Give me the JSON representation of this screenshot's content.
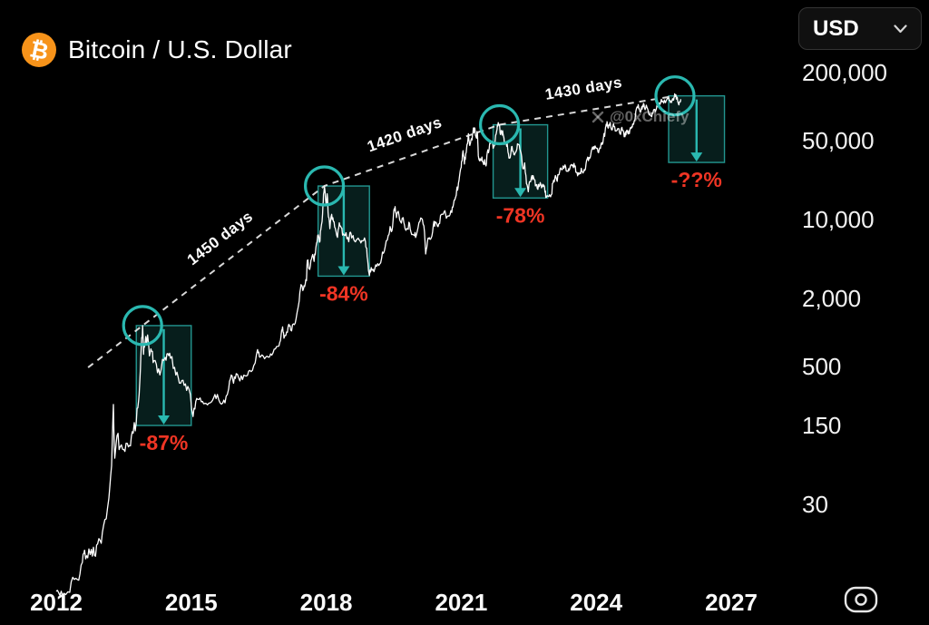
{
  "header": {
    "title": "Bitcoin / U.S. Dollar",
    "logo_glyph": "₿"
  },
  "currency_selector": {
    "label": "USD"
  },
  "watermark": {
    "text": "@0xChiefy"
  },
  "colors": {
    "background": "#000000",
    "price_line": "#ffffff",
    "accent_teal": "#2ab8b0",
    "alert_red": "#f03524",
    "bitcoin_orange": "#f7931a",
    "axis_text": "#f2f2f2"
  },
  "chart_data": {
    "type": "line",
    "title": "Bitcoin / U.S. Dollar",
    "x_axis": {
      "ticks": [
        2012,
        2015,
        2018,
        2021,
        2024,
        2027
      ],
      "range": [
        2011.75,
        2027.6
      ]
    },
    "y_axis": {
      "scale": "log",
      "unit": "USD",
      "ticks": [
        200000,
        50000,
        10000,
        2000,
        500,
        150,
        30
      ],
      "tick_labels": [
        "200,000",
        "50,000",
        "10,000",
        "2,000",
        "500",
        "150",
        "30"
      ]
    },
    "points": [
      [
        2012.0,
        5.1
      ],
      [
        2012.08,
        4.7
      ],
      [
        2012.17,
        4.9
      ],
      [
        2012.3,
        5.0
      ],
      [
        2012.4,
        6.5
      ],
      [
        2012.5,
        6.4
      ],
      [
        2012.58,
        9.2
      ],
      [
        2012.63,
        11.8
      ],
      [
        2012.7,
        10.1
      ],
      [
        2012.78,
        12.0
      ],
      [
        2012.85,
        10.6
      ],
      [
        2012.92,
        13.4
      ],
      [
        2013.0,
        13.6
      ],
      [
        2013.08,
        22
      ],
      [
        2013.17,
        34
      ],
      [
        2013.23,
        66
      ],
      [
        2013.27,
        230
      ],
      [
        2013.3,
        77
      ],
      [
        2013.35,
        122
      ],
      [
        2013.42,
        97
      ],
      [
        2013.5,
        92
      ],
      [
        2013.58,
        104
      ],
      [
        2013.65,
        99
      ],
      [
        2013.71,
        128
      ],
      [
        2013.78,
        165
      ],
      [
        2013.83,
        250
      ],
      [
        2013.87,
        480
      ],
      [
        2013.9,
        900
      ],
      [
        2013.92,
        1150
      ],
      [
        2013.94,
        640
      ],
      [
        2013.97,
        780
      ],
      [
        2014.0,
        840
      ],
      [
        2014.03,
        950
      ],
      [
        2014.07,
        620
      ],
      [
        2014.12,
        680
      ],
      [
        2014.17,
        560
      ],
      [
        2014.25,
        440
      ],
      [
        2014.33,
        470
      ],
      [
        2014.42,
        600
      ],
      [
        2014.48,
        650
      ],
      [
        2014.54,
        590
      ],
      [
        2014.63,
        490
      ],
      [
        2014.71,
        400
      ],
      [
        2014.79,
        375
      ],
      [
        2014.87,
        350
      ],
      [
        2014.95,
        315
      ],
      [
        2015.04,
        180
      ],
      [
        2015.1,
        245
      ],
      [
        2015.17,
        255
      ],
      [
        2015.25,
        245
      ],
      [
        2015.33,
        235
      ],
      [
        2015.42,
        238
      ],
      [
        2015.5,
        265
      ],
      [
        2015.58,
        282
      ],
      [
        2015.67,
        232
      ],
      [
        2015.75,
        238
      ],
      [
        2015.83,
        315
      ],
      [
        2015.89,
        420
      ],
      [
        2015.94,
        355
      ],
      [
        2016.0,
        432
      ],
      [
        2016.08,
        372
      ],
      [
        2016.17,
        418
      ],
      [
        2016.25,
        417
      ],
      [
        2016.33,
        450
      ],
      [
        2016.42,
        535
      ],
      [
        2016.46,
        665
      ],
      [
        2016.5,
        670
      ],
      [
        2016.54,
        610
      ],
      [
        2016.63,
        585
      ],
      [
        2016.71,
        605
      ],
      [
        2016.79,
        630
      ],
      [
        2016.87,
        715
      ],
      [
        2016.95,
        760
      ],
      [
        2017.0,
        970
      ],
      [
        2017.03,
        1120
      ],
      [
        2017.06,
        890
      ],
      [
        2017.12,
        1010
      ],
      [
        2017.17,
        1180
      ],
      [
        2017.21,
        1050
      ],
      [
        2017.27,
        1190
      ],
      [
        2017.33,
        1330
      ],
      [
        2017.4,
        1900
      ],
      [
        2017.44,
        2650
      ],
      [
        2017.48,
        2350
      ],
      [
        2017.52,
        2550
      ],
      [
        2017.56,
        2870
      ],
      [
        2017.58,
        4350
      ],
      [
        2017.62,
        3650
      ],
      [
        2017.66,
        4350
      ],
      [
        2017.7,
        4900
      ],
      [
        2017.73,
        4250
      ],
      [
        2017.77,
        5650
      ],
      [
        2017.81,
        7200
      ],
      [
        2017.85,
        6300
      ],
      [
        2017.88,
        8100
      ],
      [
        2017.92,
        11300
      ],
      [
        2017.94,
        16800
      ],
      [
        2017.96,
        19800
      ],
      [
        2018.0,
        13400
      ],
      [
        2018.02,
        16900
      ],
      [
        2018.05,
        10500
      ],
      [
        2018.08,
        8300
      ],
      [
        2018.12,
        11100
      ],
      [
        2018.16,
        9600
      ],
      [
        2018.2,
        8400
      ],
      [
        2018.25,
        6950
      ],
      [
        2018.29,
        9350
      ],
      [
        2018.33,
        8500
      ],
      [
        2018.38,
        7450
      ],
      [
        2018.44,
        7650
      ],
      [
        2018.5,
        6350
      ],
      [
        2018.54,
        7700
      ],
      [
        2018.58,
        7050
      ],
      [
        2018.63,
        6450
      ],
      [
        2018.69,
        6700
      ],
      [
        2018.75,
        6500
      ],
      [
        2018.81,
        6450
      ],
      [
        2018.87,
        6380
      ],
      [
        2018.9,
        5550
      ],
      [
        2018.93,
        4000
      ],
      [
        2018.96,
        3200
      ],
      [
        2019.0,
        3750
      ],
      [
        2019.06,
        3450
      ],
      [
        2019.12,
        3850
      ],
      [
        2019.19,
        4050
      ],
      [
        2019.25,
        5150
      ],
      [
        2019.31,
        5750
      ],
      [
        2019.38,
        7250
      ],
      [
        2019.42,
        8650
      ],
      [
        2019.46,
        7950
      ],
      [
        2019.5,
        11900
      ],
      [
        2019.53,
        13000
      ],
      [
        2019.56,
        10400
      ],
      [
        2019.6,
        11800
      ],
      [
        2019.65,
        9600
      ],
      [
        2019.71,
        10400
      ],
      [
        2019.75,
        8350
      ],
      [
        2019.81,
        8250
      ],
      [
        2019.85,
        9250
      ],
      [
        2019.9,
        7350
      ],
      [
        2019.96,
        7200
      ],
      [
        2020.0,
        7200
      ],
      [
        2020.06,
        9400
      ],
      [
        2020.12,
        10200
      ],
      [
        2020.17,
        8800
      ],
      [
        2020.21,
        4950
      ],
      [
        2020.25,
        6450
      ],
      [
        2020.29,
        6900
      ],
      [
        2020.33,
        6850
      ],
      [
        2020.38,
        8850
      ],
      [
        2020.42,
        9550
      ],
      [
        2020.46,
        9050
      ],
      [
        2020.5,
        9150
      ],
      [
        2020.56,
        11100
      ],
      [
        2020.62,
        11750
      ],
      [
        2020.67,
        10250
      ],
      [
        2020.73,
        10700
      ],
      [
        2020.79,
        11550
      ],
      [
        2020.83,
        13850
      ],
      [
        2020.87,
        15600
      ],
      [
        2020.9,
        18400
      ],
      [
        2020.93,
        19200
      ],
      [
        2020.96,
        23850
      ],
      [
        2021.0,
        29000
      ],
      [
        2021.02,
        33100
      ],
      [
        2021.04,
        40600
      ],
      [
        2021.07,
        31000
      ],
      [
        2021.1,
        38300
      ],
      [
        2021.13,
        46400
      ],
      [
        2021.16,
        57500
      ],
      [
        2021.19,
        45200
      ],
      [
        2021.23,
        52000
      ],
      [
        2021.26,
        58800
      ],
      [
        2021.29,
        64850
      ],
      [
        2021.33,
        53600
      ],
      [
        2021.36,
        57800
      ],
      [
        2021.38,
        36700
      ],
      [
        2021.42,
        34600
      ],
      [
        2021.46,
        35700
      ],
      [
        2021.49,
        31600
      ],
      [
        2021.52,
        33900
      ],
      [
        2021.55,
        29800
      ],
      [
        2021.58,
        39500
      ],
      [
        2021.62,
        42200
      ],
      [
        2021.65,
        47100
      ],
      [
        2021.69,
        48800
      ],
      [
        2021.72,
        43800
      ],
      [
        2021.75,
        48150
      ],
      [
        2021.79,
        61350
      ],
      [
        2021.81,
        66950
      ],
      [
        2021.85,
        69000
      ],
      [
        2021.87,
        56500
      ],
      [
        2021.9,
        58900
      ],
      [
        2021.93,
        57300
      ],
      [
        2021.96,
        46200
      ],
      [
        2022.0,
        47750
      ],
      [
        2022.03,
        43100
      ],
      [
        2022.06,
        35050
      ],
      [
        2022.1,
        38300
      ],
      [
        2022.13,
        44400
      ],
      [
        2022.17,
        37700
      ],
      [
        2022.21,
        39400
      ],
      [
        2022.25,
        46850
      ],
      [
        2022.29,
        45500
      ],
      [
        2022.33,
        38600
      ],
      [
        2022.37,
        28300
      ],
      [
        2022.41,
        31700
      ],
      [
        2022.45,
        20800
      ],
      [
        2022.49,
        17600
      ],
      [
        2022.53,
        21600
      ],
      [
        2022.57,
        24450
      ],
      [
        2022.61,
        23300
      ],
      [
        2022.65,
        19800
      ],
      [
        2022.69,
        18800
      ],
      [
        2022.73,
        19550
      ],
      [
        2022.77,
        20350
      ],
      [
        2022.81,
        20500
      ],
      [
        2022.85,
        19400
      ],
      [
        2022.88,
        15700
      ],
      [
        2022.92,
        16200
      ],
      [
        2022.96,
        16550
      ],
      [
        2023.0,
        16600
      ],
      [
        2023.04,
        21100
      ],
      [
        2023.08,
        23250
      ],
      [
        2023.12,
        22400
      ],
      [
        2023.16,
        24800
      ],
      [
        2023.2,
        28300
      ],
      [
        2023.24,
        27600
      ],
      [
        2023.28,
        28500
      ],
      [
        2023.32,
        29250
      ],
      [
        2023.36,
        26900
      ],
      [
        2023.4,
        27250
      ],
      [
        2023.44,
        30450
      ],
      [
        2023.48,
        30300
      ],
      [
        2023.52,
        29250
      ],
      [
        2023.56,
        26050
      ],
      [
        2023.6,
        25900
      ],
      [
        2023.64,
        26050
      ],
      [
        2023.68,
        26900
      ],
      [
        2023.72,
        26600
      ],
      [
        2023.76,
        27950
      ],
      [
        2023.8,
        34500
      ],
      [
        2023.84,
        35400
      ],
      [
        2023.88,
        37700
      ],
      [
        2023.92,
        43800
      ],
      [
        2023.96,
        42250
      ],
      [
        2024.0,
        42600
      ],
      [
        2024.04,
        39500
      ],
      [
        2024.08,
        43100
      ],
      [
        2024.12,
        48000
      ],
      [
        2024.16,
        52200
      ],
      [
        2024.2,
        61500
      ],
      [
        2024.22,
        69600
      ],
      [
        2024.24,
        73600
      ],
      [
        2024.27,
        64500
      ],
      [
        2024.3,
        70600
      ],
      [
        2024.33,
        64000
      ],
      [
        2024.37,
        67600
      ],
      [
        2024.41,
        66300
      ],
      [
        2024.45,
        61000
      ],
      [
        2024.49,
        63800
      ],
      [
        2024.53,
        57050
      ],
      [
        2024.57,
        65400
      ],
      [
        2024.61,
        59000
      ],
      [
        2024.64,
        54050
      ],
      [
        2024.67,
        60600
      ],
      [
        2024.71,
        57300
      ],
      [
        2024.75,
        63300
      ],
      [
        2024.79,
        66600
      ],
      [
        2024.82,
        69400
      ],
      [
        2024.85,
        75600
      ],
      [
        2024.88,
        90500
      ],
      [
        2024.92,
        98000
      ],
      [
        2024.96,
        95850
      ],
      [
        2025.0,
        94400
      ],
      [
        2025.03,
        102100
      ],
      [
        2025.06,
        104700
      ],
      [
        2025.1,
        97700
      ],
      [
        2025.14,
        96200
      ],
      [
        2025.18,
        84350
      ],
      [
        2025.22,
        82550
      ],
      [
        2025.26,
        87200
      ],
      [
        2025.3,
        94250
      ],
      [
        2025.34,
        97000
      ],
      [
        2025.38,
        103900
      ],
      [
        2025.42,
        104600
      ],
      [
        2025.46,
        110500
      ],
      [
        2025.5,
        107150
      ],
      [
        2025.54,
        108250
      ],
      [
        2025.58,
        118000
      ],
      [
        2025.62,
        113500
      ],
      [
        2025.66,
        112000
      ],
      [
        2025.7,
        117500
      ],
      [
        2025.73,
        121000
      ],
      [
        2025.75,
        124400
      ],
      [
        2025.78,
        116500
      ],
      [
        2025.81,
        111000
      ],
      [
        2025.85,
        110500
      ],
      [
        2025.88,
        116300
      ]
    ],
    "cycle_peaks": [
      {
        "t": 2013.92,
        "price": 1150
      },
      {
        "t": 2017.96,
        "price": 19800
      },
      {
        "t": 2021.85,
        "price": 69000
      },
      {
        "t": 2025.75,
        "price": 124400
      }
    ],
    "peak_intervals": [
      {
        "label": "1450 days"
      },
      {
        "label": "1420 days"
      },
      {
        "label": "1430 days"
      }
    ],
    "drawdowns": [
      {
        "label": "-87%",
        "t_start": 2013.92,
        "t_end": 2015.0,
        "peak_price": 1150,
        "box_bottom_price": 150
      },
      {
        "label": "-84%",
        "t_start": 2017.96,
        "t_end": 2018.96,
        "peak_price": 19800,
        "box_bottom_price": 3150
      },
      {
        "label": "-78%",
        "t_start": 2021.85,
        "t_end": 2022.92,
        "peak_price": 69000,
        "box_bottom_price": 15500
      },
      {
        "label": "-??%",
        "t_start": 2025.75,
        "t_end": 2026.85,
        "peak_price": 124400,
        "box_bottom_price": 32000
      }
    ]
  }
}
